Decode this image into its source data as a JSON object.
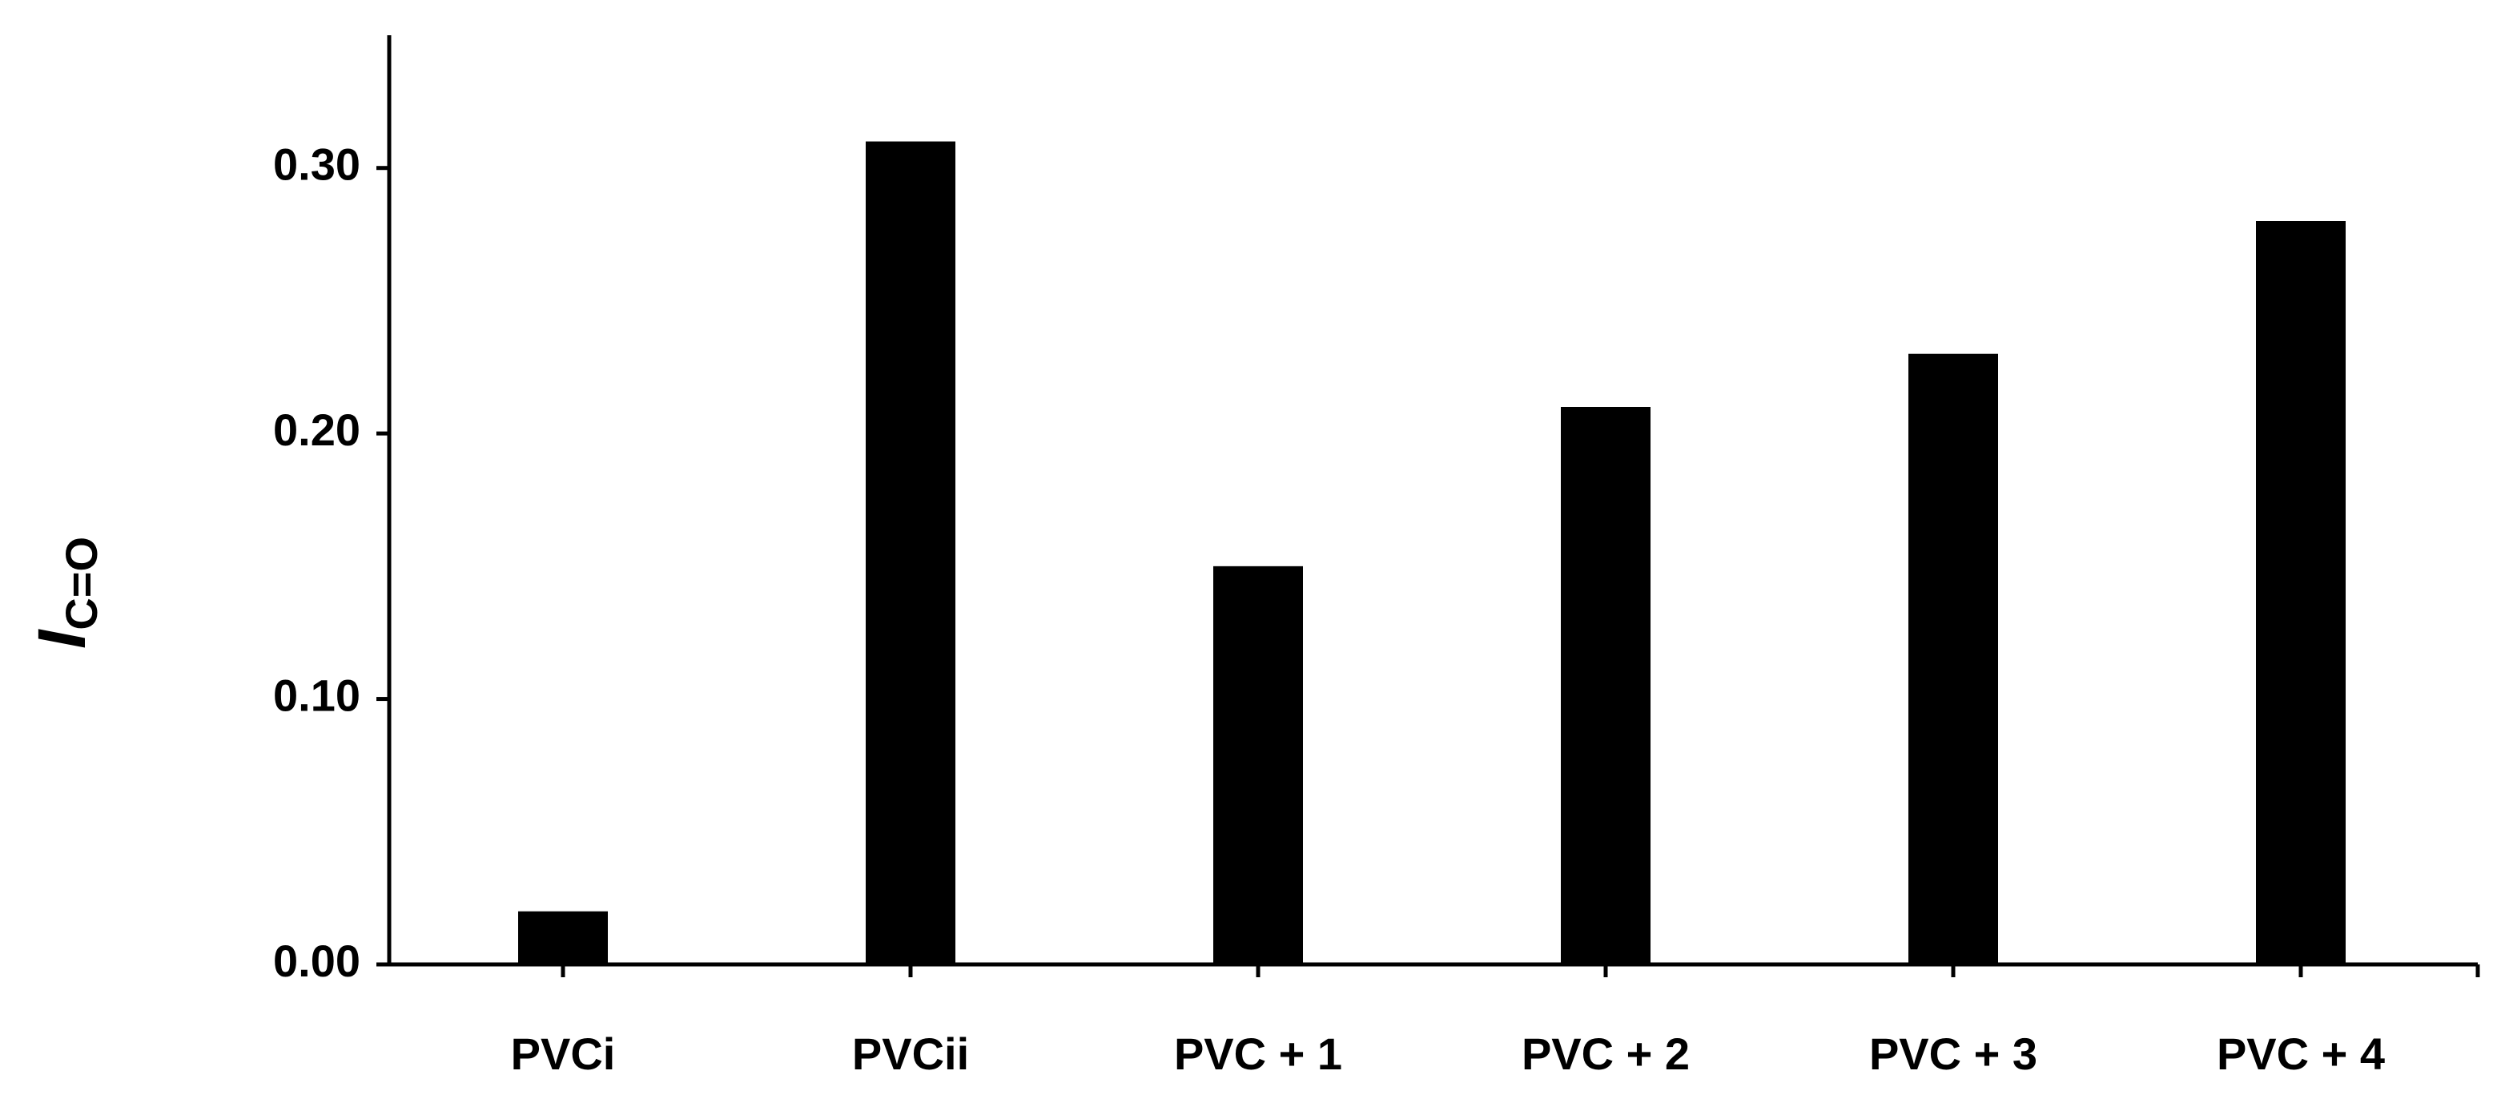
{
  "chart_data": {
    "type": "bar",
    "y_label": "I",
    "y_label_sub": "C=O",
    "categories": [
      "PVCi",
      "PVCii",
      "PVC + 1",
      "PVC + 2",
      "PVC + 3",
      "PVC + 4"
    ],
    "values": [
      0.02,
      0.31,
      0.15,
      0.21,
      0.23,
      0.28
    ],
    "color": "#000000",
    "ylim": [
      0,
      0.35
    ],
    "yticks": [
      {
        "value": 0,
        "label": "0.00"
      },
      {
        "value": 0.1,
        "label": "0.10"
      },
      {
        "value": 0.2,
        "label": "0.20"
      },
      {
        "value": 0.3,
        "label": "0.30"
      }
    ],
    "grid": false
  }
}
